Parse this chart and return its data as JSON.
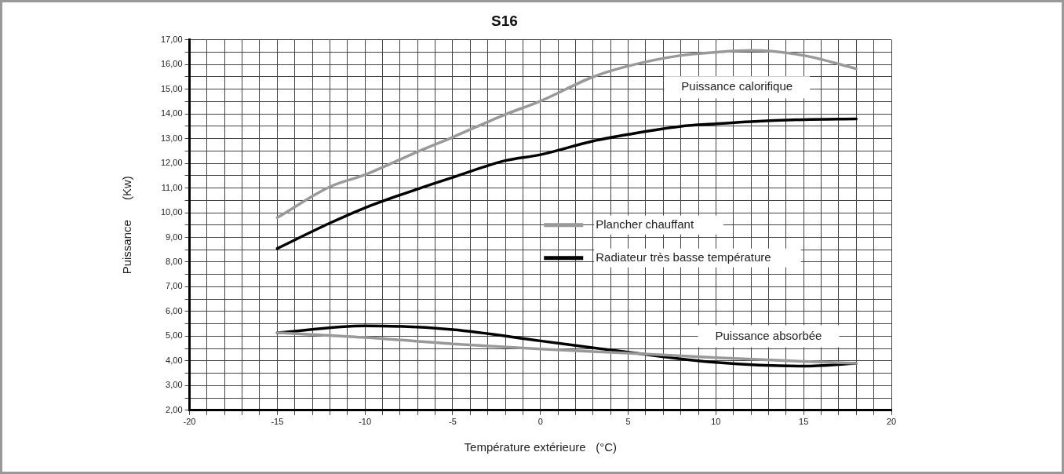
{
  "chart_data": {
    "type": "line",
    "title": "S16",
    "xlabel": "Température extérieure   (°C)",
    "ylabel": "Puissance      (Kw)",
    "xlim": [
      -20,
      20
    ],
    "ylim": [
      2,
      17
    ],
    "xticks": [
      -20,
      {
        "value": -19,
        "label": null
      },
      {
        "value": -18,
        "label": null
      },
      {
        "value": -17,
        "label": null
      },
      {
        "value": -16,
        "label": null
      },
      -15,
      {
        "value": -14,
        "label": null
      },
      {
        "value": -13,
        "label": null
      },
      {
        "value": -12,
        "label": null
      },
      {
        "value": -11,
        "label": null
      },
      -10,
      {
        "value": -9,
        "label": null
      },
      {
        "value": -8,
        "label": null
      },
      {
        "value": -7,
        "label": null
      },
      {
        "value": -6,
        "label": null
      },
      -5,
      {
        "value": -4,
        "label": null
      },
      {
        "value": -3,
        "label": null
      },
      {
        "value": -2,
        "label": null
      },
      {
        "value": -1,
        "label": null
      },
      0,
      {
        "value": 1,
        "label": null
      },
      {
        "value": 2,
        "label": null
      },
      {
        "value": 3,
        "label": null
      },
      {
        "value": 4,
        "label": null
      },
      5,
      {
        "value": 6,
        "label": null
      },
      {
        "value": 7,
        "label": null
      },
      {
        "value": 8,
        "label": null
      },
      {
        "value": 9,
        "label": null
      },
      10,
      {
        "value": 11,
        "label": null
      },
      {
        "value": 12,
        "label": null
      },
      {
        "value": 13,
        "label": null
      },
      {
        "value": 14,
        "label": null
      },
      15,
      {
        "value": 16,
        "label": null
      },
      {
        "value": 17,
        "label": null
      },
      {
        "value": 18,
        "label": null
      },
      {
        "value": 19,
        "label": null
      },
      20
    ],
    "yticks": [
      {
        "value": 2,
        "label": "2,00"
      },
      {
        "value": 2.5,
        "label": null
      },
      {
        "value": 3,
        "label": "3,00"
      },
      {
        "value": 3.5,
        "label": null
      },
      {
        "value": 4,
        "label": "4,00"
      },
      {
        "value": 4.5,
        "label": null
      },
      {
        "value": 5,
        "label": "5,00"
      },
      {
        "value": 5.5,
        "label": null
      },
      {
        "value": 6,
        "label": "6,00"
      },
      {
        "value": 6.5,
        "label": null
      },
      {
        "value": 7,
        "label": "7,00"
      },
      {
        "value": 7.5,
        "label": null
      },
      {
        "value": 8,
        "label": "8,00"
      },
      {
        "value": 8.5,
        "label": null
      },
      {
        "value": 9,
        "label": "9,00"
      },
      {
        "value": 9.5,
        "label": null
      },
      {
        "value": 10,
        "label": "10,00"
      },
      {
        "value": 10.5,
        "label": null
      },
      {
        "value": 11,
        "label": "11,00"
      },
      {
        "value": 11.5,
        "label": null
      },
      {
        "value": 12,
        "label": "12,00"
      },
      {
        "value": 12.5,
        "label": null
      },
      {
        "value": 13,
        "label": "13,00"
      },
      {
        "value": 13.5,
        "label": null
      },
      {
        "value": 14,
        "label": "14,00"
      },
      {
        "value": 14.5,
        "label": null
      },
      {
        "value": 15,
        "label": "15,00"
      },
      {
        "value": 15.5,
        "label": null
      },
      {
        "value": 16,
        "label": "16,00"
      },
      {
        "value": 16.5,
        "label": null
      },
      {
        "value": 17,
        "label": "17,00"
      }
    ],
    "grid": true,
    "legend": "center right",
    "marker": "none",
    "line_style": "solid",
    "series": [
      {
        "name": "Plancher chauffant",
        "color": "#999999",
        "x": [
          -15,
          -12,
          -10,
          -7,
          -5,
          -2,
          0,
          3,
          5,
          8,
          10,
          12,
          15,
          18
        ],
        "values": [
          9.8,
          11.05,
          11.54,
          12.47,
          13.06,
          13.98,
          14.52,
          15.5,
          15.94,
          16.37,
          16.5,
          16.57,
          16.37,
          15.83
        ]
      },
      {
        "name": "Radiateur très basse température",
        "color": "#000000",
        "x": [
          -15,
          -12,
          -10,
          -7,
          -5,
          -2,
          0,
          3,
          5,
          8,
          10,
          12,
          15,
          18
        ],
        "values": [
          8.55,
          9.58,
          10.2,
          10.96,
          11.43,
          12.11,
          12.35,
          12.9,
          13.17,
          13.5,
          13.6,
          13.69,
          13.77,
          13.8
        ]
      },
      {
        "color": "#999999",
        "x": [
          -15,
          -10,
          -5,
          0,
          5,
          10,
          15,
          18
        ],
        "values": [
          5.14,
          4.95,
          4.69,
          4.48,
          4.31,
          4.13,
          3.98,
          3.9
        ]
      },
      {
        "color": "#000000",
        "x": [
          -15,
          -10,
          -5,
          0,
          5,
          10,
          15,
          18
        ],
        "values": [
          5.14,
          5.42,
          5.27,
          4.81,
          4.35,
          3.94,
          3.79,
          3.9
        ]
      }
    ],
    "annotations": [
      "Puissance calorifique",
      "Puissance absorbée"
    ]
  }
}
